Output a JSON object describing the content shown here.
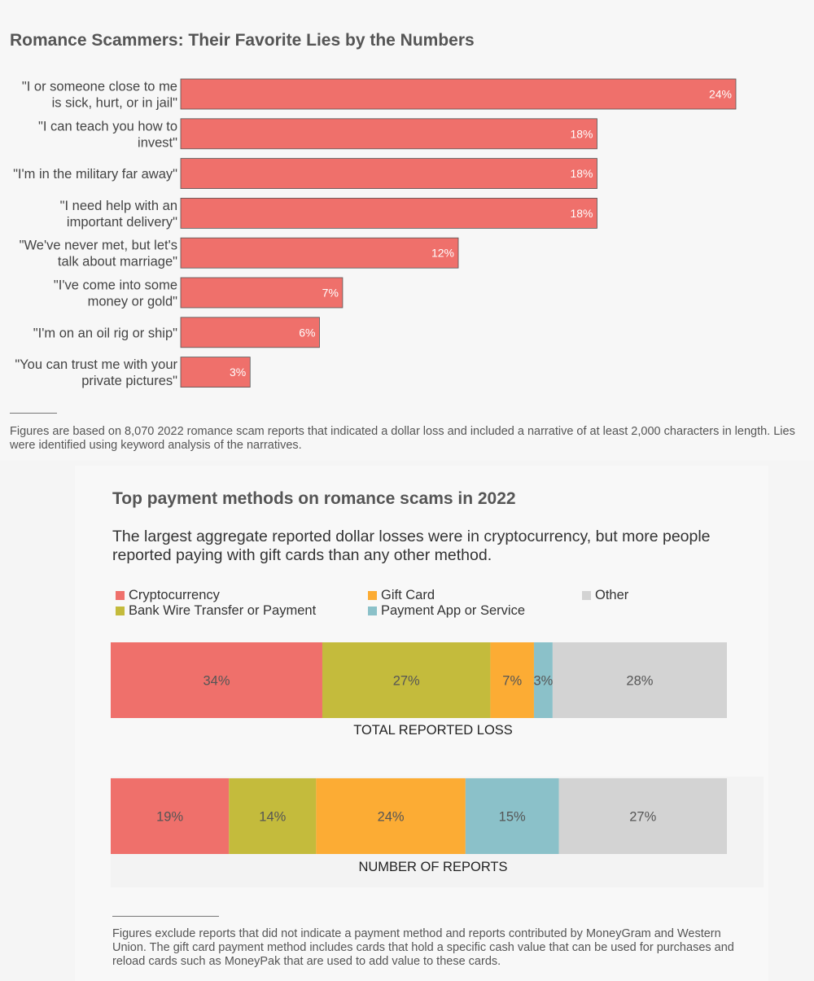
{
  "chart_data": [
    {
      "type": "bar",
      "orientation": "horizontal",
      "title": "Romance Scammers: Their Favorite Lies by the Numbers",
      "categories": [
        [
          "\"I or someone close to me",
          "is sick, hurt, or in jail\""
        ],
        [
          "\"I can teach you how to",
          "invest\""
        ],
        [
          "\"I'm in the military far away\""
        ],
        [
          "\"I need help with an",
          "important delivery\""
        ],
        [
          "\"We've never met, but let's",
          "talk about marriage\""
        ],
        [
          "\"I've come into some",
          "money or gold\""
        ],
        [
          "\"I'm on an oil rig or ship\""
        ],
        [
          "\"You can trust me with your",
          "private pictures\""
        ]
      ],
      "values": [
        24,
        18,
        18,
        18,
        12,
        7,
        6,
        3
      ],
      "value_labels": [
        "24%",
        "18%",
        "18%",
        "18%",
        "12%",
        "7%",
        "6%",
        "3%"
      ],
      "value_unit": "%",
      "xlim": [
        0,
        27
      ],
      "bar_color": "#ef706b",
      "grid": false,
      "footnote": "Figures are based on 8,070 2022 romance scam reports that indicated a dollar loss and included a narrative of at least 2,000 characters in length. Lies were identified using keyword analysis of the narratives."
    },
    {
      "type": "bar",
      "orientation": "horizontal",
      "stacked": "percent",
      "title": "Top payment methods on romance scams in 2022",
      "subtitle": "The largest aggregate reported dollar losses were in cryptocurrency, but more people reported paying with gift cards than any other method.",
      "legend_position": "top",
      "series": [
        {
          "name": "Cryptocurrency",
          "color": "#ef706b",
          "values": [
            34,
            19
          ]
        },
        {
          "name": "Bank Wire Transfer or Payment",
          "color": "#c4bb3c",
          "values": [
            27,
            14
          ]
        },
        {
          "name": "Gift Card",
          "color": "#fcac34",
          "values": [
            7,
            24
          ]
        },
        {
          "name": "Payment App or Service",
          "color": "#8bc1c9",
          "values": [
            3,
            15
          ]
        },
        {
          "name": "Other",
          "color": "#d3d3d3",
          "values": [
            28,
            27
          ]
        }
      ],
      "categories": [
        "TOTAL REPORTED LOSS",
        "NUMBER OF REPORTS"
      ],
      "value_labels": [
        [
          "34%",
          "27%",
          "7%",
          "3%",
          "28%"
        ],
        [
          "19%",
          "14%",
          "24%",
          "15%",
          "27%"
        ]
      ],
      "footnote": "Figures exclude reports that did not indicate a payment method and reports contributed by MoneyGram and Western Union. The gift card payment method includes cards that hold a specific cash value that can be used for purchases and reload cards such as MoneyPak that are used to add value to these cards."
    }
  ]
}
